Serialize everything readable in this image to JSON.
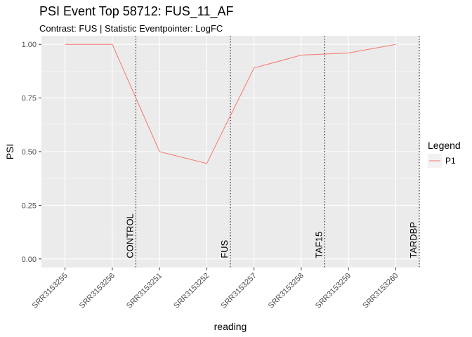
{
  "chart_data": {
    "type": "line",
    "title": "PSI Event Top 58712: FUS_11_AF",
    "subtitle": "Contrast: FUS | Statistic Eventpointer: LogFC",
    "xlabel": "reading",
    "ylabel": "PSI",
    "categories": [
      "SRR3153255",
      "SRR3153256",
      "SRR3153251",
      "SRR3153252",
      "SRR3153257",
      "SRR3153258",
      "SRR3153259",
      "SRR3153260"
    ],
    "ylim": [
      -0.04,
      1.04
    ],
    "yticks": [
      0.0,
      0.25,
      0.5,
      0.75,
      1.0
    ],
    "ytick_labels": [
      "0.00",
      "0.25",
      "0.50",
      "0.75",
      "1.00"
    ],
    "series": [
      {
        "name": "P1",
        "color": "#F8766D",
        "values": [
          1.0,
          1.0,
          0.5,
          0.445,
          0.89,
          0.95,
          0.96,
          1.0
        ]
      }
    ],
    "vlines": [
      {
        "label": "CONTROL",
        "position": 2.5
      },
      {
        "label": "FUS",
        "position": 4.5
      },
      {
        "label": "TAF15",
        "position": 6.5
      },
      {
        "label": "TARDBP",
        "position": 8.5
      }
    ],
    "legend": {
      "title": "Legend",
      "placement": "right"
    },
    "grid": true,
    "panel_background": "#EBEBEB"
  }
}
